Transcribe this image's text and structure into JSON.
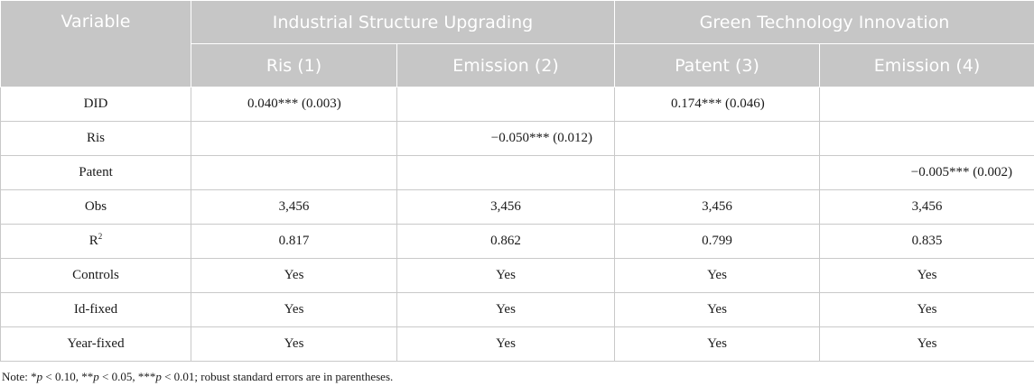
{
  "header": {
    "variable": "Variable",
    "group1": "Industrial Structure Upgrading",
    "group2": "Green Technology Innovation",
    "col1": "Ris (1)",
    "col2": "Emission (2)",
    "col3": "Patent (3)",
    "col4": "Emission (4)"
  },
  "rows": [
    {
      "label": "DID",
      "c1": "0.040*** (0.003)",
      "c2": "",
      "c3": "0.174*** (0.046)",
      "c4": ""
    },
    {
      "label": "Ris",
      "c1": "",
      "c2": "−0.050*** (0.012)",
      "c3": "",
      "c4": ""
    },
    {
      "label": "Patent",
      "c1": "",
      "c2": "",
      "c3": "",
      "c4": "−0.005*** (0.002)"
    },
    {
      "label": "Obs",
      "c1": "3,456",
      "c2": "3,456",
      "c3": "3,456",
      "c4": "3,456"
    },
    {
      "label": "R",
      "label_sup": "2",
      "c1": "0.817",
      "c2": "0.862",
      "c3": "0.799",
      "c4": "0.835"
    },
    {
      "label": "Controls",
      "c1": "Yes",
      "c2": "Yes",
      "c3": "Yes",
      "c4": "Yes"
    },
    {
      "label": "Id-fixed",
      "c1": "Yes",
      "c2": "Yes",
      "c3": "Yes",
      "c4": "Yes"
    },
    {
      "label": "Year-fixed",
      "c1": "Yes",
      "c2": "Yes",
      "c3": "Yes",
      "c4": "Yes"
    }
  ],
  "note": {
    "prefix": "Note: *",
    "p1": "p",
    "t1": " < 0.10, **",
    "p2": "p",
    "t2": " < 0.05, ***",
    "p3": "p",
    "t3": " < 0.01; robust standard errors are in parentheses."
  }
}
